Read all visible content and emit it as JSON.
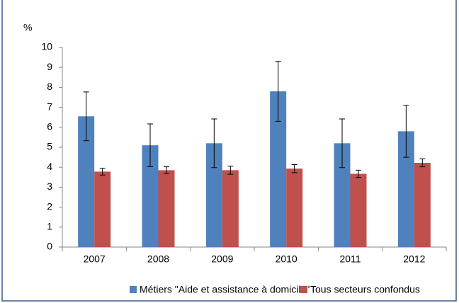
{
  "chart_data": {
    "type": "bar",
    "y_label": "%",
    "categories": [
      "2007",
      "2008",
      "2009",
      "2010",
      "2011",
      "2012"
    ],
    "series": [
      {
        "name": "Métiers \"Aide et assistance à domicile\"",
        "color": "#4f81bd",
        "values": [
          6.55,
          5.1,
          5.2,
          7.8,
          5.2,
          5.8
        ],
        "errors": [
          1.22,
          1.07,
          1.22,
          1.5,
          1.22,
          1.3
        ]
      },
      {
        "name": "Tous secteurs confondus",
        "color": "#c0504d",
        "values": [
          3.78,
          3.85,
          3.85,
          3.93,
          3.67,
          4.22
        ],
        "errors": [
          0.17,
          0.17,
          0.2,
          0.2,
          0.18,
          0.2
        ]
      }
    ],
    "ylim": [
      0,
      10
    ],
    "yticks": [
      0,
      1,
      2,
      3,
      4,
      5,
      6,
      7,
      8,
      9,
      10
    ],
    "grid": false,
    "legend": "bottom"
  }
}
